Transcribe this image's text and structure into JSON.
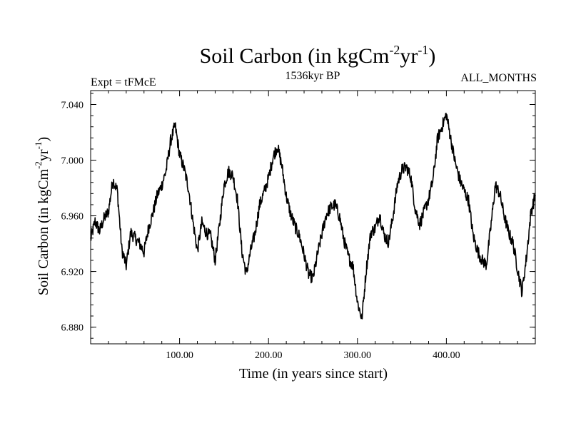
{
  "chart_data": {
    "type": "line",
    "title_main": "Soil Carbon (in kgCm",
    "title_sup1": "-2",
    "title_mid": "yr",
    "title_sup2": "-1",
    "title_end": ")",
    "subtitle_left": "Expt = tFMcE",
    "subtitle_center": "1536kyr BP",
    "subtitle_right": "ALL_MONTHS",
    "xlabel": "Time (in years since start)",
    "ylabel_main": "Soil Carbon (in kgCm",
    "ylabel_sup1": "-2",
    "ylabel_mid": "yr",
    "ylabel_sup2": "-1",
    "ylabel_end": ")",
    "xlim": [
      0,
      500
    ],
    "ylim": [
      6.868,
      7.05
    ],
    "x_ticks": [
      100,
      200,
      300,
      400
    ],
    "x_tick_labels": [
      "100.00",
      "200.00",
      "300.00",
      "400.00"
    ],
    "y_ticks": [
      6.88,
      6.92,
      6.96,
      7.0,
      7.04
    ],
    "y_tick_labels": [
      "6.880",
      "6.920",
      "6.960",
      "7.000",
      "7.040"
    ],
    "grid": false,
    "line_color": "#000000",
    "x": [
      0,
      5,
      10,
      15,
      20,
      25,
      30,
      35,
      40,
      45,
      50,
      55,
      60,
      65,
      70,
      75,
      80,
      85,
      90,
      95,
      100,
      105,
      110,
      115,
      120,
      125,
      130,
      135,
      140,
      145,
      150,
      155,
      160,
      165,
      170,
      175,
      180,
      185,
      190,
      195,
      200,
      205,
      210,
      215,
      220,
      225,
      230,
      235,
      240,
      245,
      250,
      255,
      260,
      265,
      270,
      275,
      280,
      285,
      290,
      295,
      300,
      305,
      310,
      315,
      320,
      325,
      330,
      335,
      340,
      345,
      350,
      355,
      360,
      365,
      370,
      375,
      380,
      385,
      390,
      395,
      400,
      405,
      410,
      415,
      420,
      425,
      430,
      435,
      440,
      445,
      450,
      455,
      460,
      465,
      470,
      475,
      480,
      485,
      490,
      495,
      500
    ],
    "values": [
      6.943,
      6.956,
      6.949,
      6.958,
      6.963,
      6.986,
      6.978,
      6.936,
      6.924,
      6.948,
      6.944,
      6.94,
      6.934,
      6.951,
      6.962,
      6.975,
      6.982,
      6.993,
      7.014,
      7.025,
      7.004,
      6.994,
      6.98,
      6.956,
      6.935,
      6.955,
      6.948,
      6.945,
      6.928,
      6.954,
      6.982,
      6.992,
      6.989,
      6.972,
      6.935,
      6.918,
      6.935,
      6.948,
      6.968,
      6.977,
      6.987,
      7.002,
      7.01,
      6.996,
      6.974,
      6.961,
      6.952,
      6.945,
      6.932,
      6.918,
      6.915,
      6.932,
      6.947,
      6.961,
      6.966,
      6.968,
      6.959,
      6.942,
      6.93,
      6.924,
      6.898,
      6.886,
      6.922,
      6.948,
      6.951,
      6.961,
      6.946,
      6.941,
      6.96,
      6.983,
      6.993,
      6.995,
      6.988,
      6.965,
      6.954,
      6.963,
      6.972,
      6.986,
      7.015,
      7.024,
      7.033,
      7.015,
      6.998,
      6.986,
      6.978,
      6.971,
      6.946,
      6.935,
      6.928,
      6.925,
      6.952,
      6.982,
      6.976,
      6.96,
      6.948,
      6.94,
      6.922,
      6.905,
      6.93,
      6.962,
      6.975
    ]
  }
}
